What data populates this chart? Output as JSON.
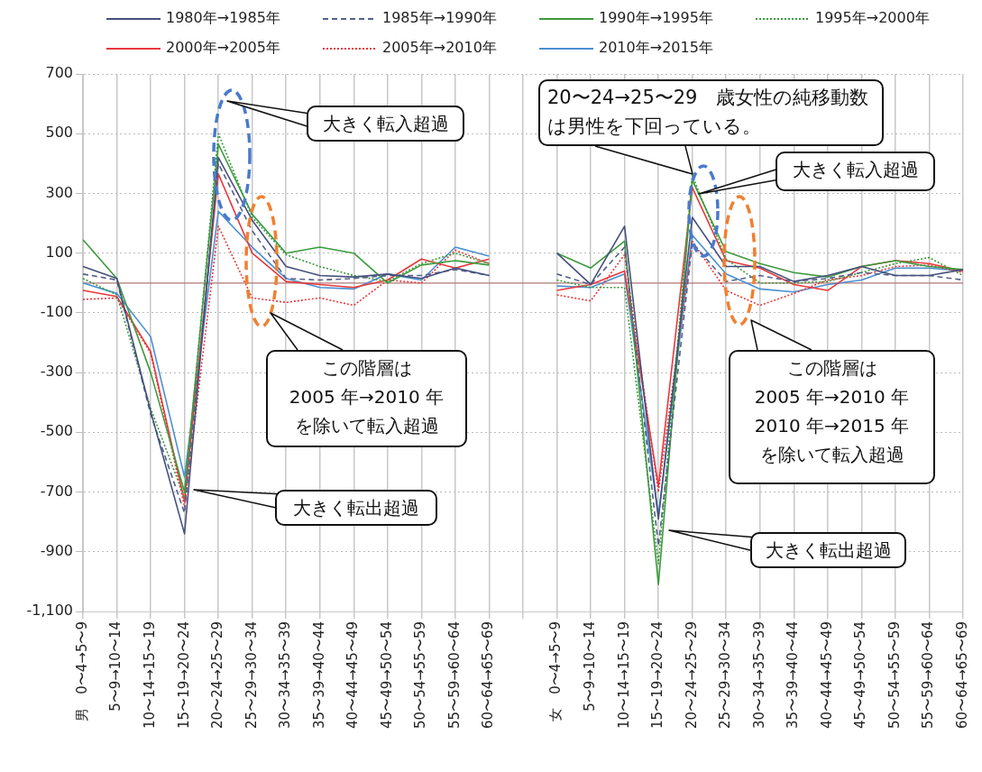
{
  "chart_data": {
    "type": "line",
    "categories": [
      "男　0〜4→5〜9",
      "5〜9→10〜14",
      "10〜14→15〜19",
      "15〜19→20〜24",
      "20〜24→25〜29",
      "25〜29→30〜34",
      "30〜34→35〜39",
      "35〜39→40〜44",
      "40〜44→45〜49",
      "45〜49→50〜54",
      "50〜54→55〜59",
      "55〜59→60〜64",
      "60〜64→65〜69",
      null,
      "女　0〜4→5〜9",
      "5〜9→10〜14",
      "10〜14→15〜19",
      "15〜19→20〜24",
      "20〜24→25〜29",
      "25〜29→30〜34",
      "30〜34→35〜39",
      "35〜39→40〜44",
      "40〜44→45〜49",
      "45〜49→50〜54",
      "50〜54→55〜59",
      "55〜59→60〜64",
      "60〜64→65〜69"
    ],
    "series": [
      {
        "name": "1980年→1985年",
        "color": "#44507c",
        "line_style": "solid",
        "values": [
          55,
          15,
          -430,
          -840,
          420,
          210,
          55,
          25,
          20,
          30,
          15,
          50,
          25,
          null,
          100,
          -5,
          190,
          -790,
          220,
          55,
          55,
          5,
          25,
          55,
          25,
          25,
          45
        ]
      },
      {
        "name": "1985年→1990年",
        "color": "#55608a",
        "line_style": "dashed",
        "values": [
          30,
          10,
          -440,
          -770,
          400,
          175,
          15,
          10,
          15,
          25,
          25,
          45,
          25,
          null,
          30,
          -5,
          120,
          -880,
          135,
          5,
          25,
          5,
          15,
          35,
          25,
          25,
          10
        ]
      },
      {
        "name": "1990年→1995年",
        "color": "#3c9a3c",
        "line_style": "solid",
        "values": [
          145,
          15,
          -300,
          -700,
          465,
          230,
          100,
          120,
          100,
          0,
          60,
          75,
          60,
          null,
          100,
          50,
          140,
          -1010,
          345,
          105,
          65,
          35,
          20,
          55,
          75,
          55,
          45
        ]
      },
      {
        "name": "1995年→2000年",
        "color": "#3c9a3c",
        "line_style": "dotted",
        "values": [
          15,
          -40,
          -420,
          -720,
          500,
          220,
          95,
          55,
          25,
          5,
          65,
          100,
          65,
          null,
          10,
          -15,
          -15,
          -940,
          360,
          80,
          0,
          0,
          5,
          35,
          65,
          85,
          25
        ]
      },
      {
        "name": "2000年→2005年",
        "color": "#e8383c",
        "line_style": "solid",
        "values": [
          -25,
          -45,
          -230,
          -730,
          365,
          100,
          5,
          -5,
          -15,
          10,
          80,
          50,
          80,
          null,
          -25,
          -5,
          40,
          -680,
          320,
          75,
          50,
          -5,
          -25,
          55,
          75,
          65,
          40
        ]
      },
      {
        "name": "2005年→2010年",
        "color": "#e8383c",
        "line_style": "dotted",
        "values": [
          -55,
          -50,
          -235,
          -750,
          190,
          -50,
          -65,
          -50,
          -75,
          10,
          0,
          110,
          65,
          null,
          -40,
          -60,
          95,
          -700,
          140,
          -25,
          -75,
          -35,
          10,
          25,
          55,
          60,
          35
        ]
      },
      {
        "name": "2010年→2015年",
        "color": "#4a90d0",
        "line_style": "solid",
        "values": [
          0,
          -35,
          -180,
          -650,
          240,
          120,
          15,
          -15,
          -20,
          30,
          10,
          120,
          90,
          null,
          -10,
          -15,
          30,
          -780,
          160,
          30,
          -20,
          -30,
          -5,
          10,
          50,
          50,
          40
        ]
      }
    ],
    "ylim": [
      -1100,
      700
    ],
    "yticks": [
      {
        "value": -1100,
        "label": "-1,100"
      },
      -900,
      -700,
      -500,
      -300,
      -100,
      100,
      300,
      500,
      700
    ],
    "grid": true,
    "legend": "top",
    "marker": "none",
    "ref_lines": [
      {
        "axis": "y",
        "value": 0,
        "color": "#b07878"
      }
    ],
    "annotations": [
      "大きく転入超過",
      "この階層は2005 年→2010 年を除いて転入超過",
      "大きく転出超過",
      "20〜24→25〜29　歳女性の純移動数は男性を下回っている。",
      "大きく転入超過",
      "この階層は2005 年→2010 年 2010 年→2015 年を除いて転入超過",
      "大きく転出超過"
    ]
  }
}
